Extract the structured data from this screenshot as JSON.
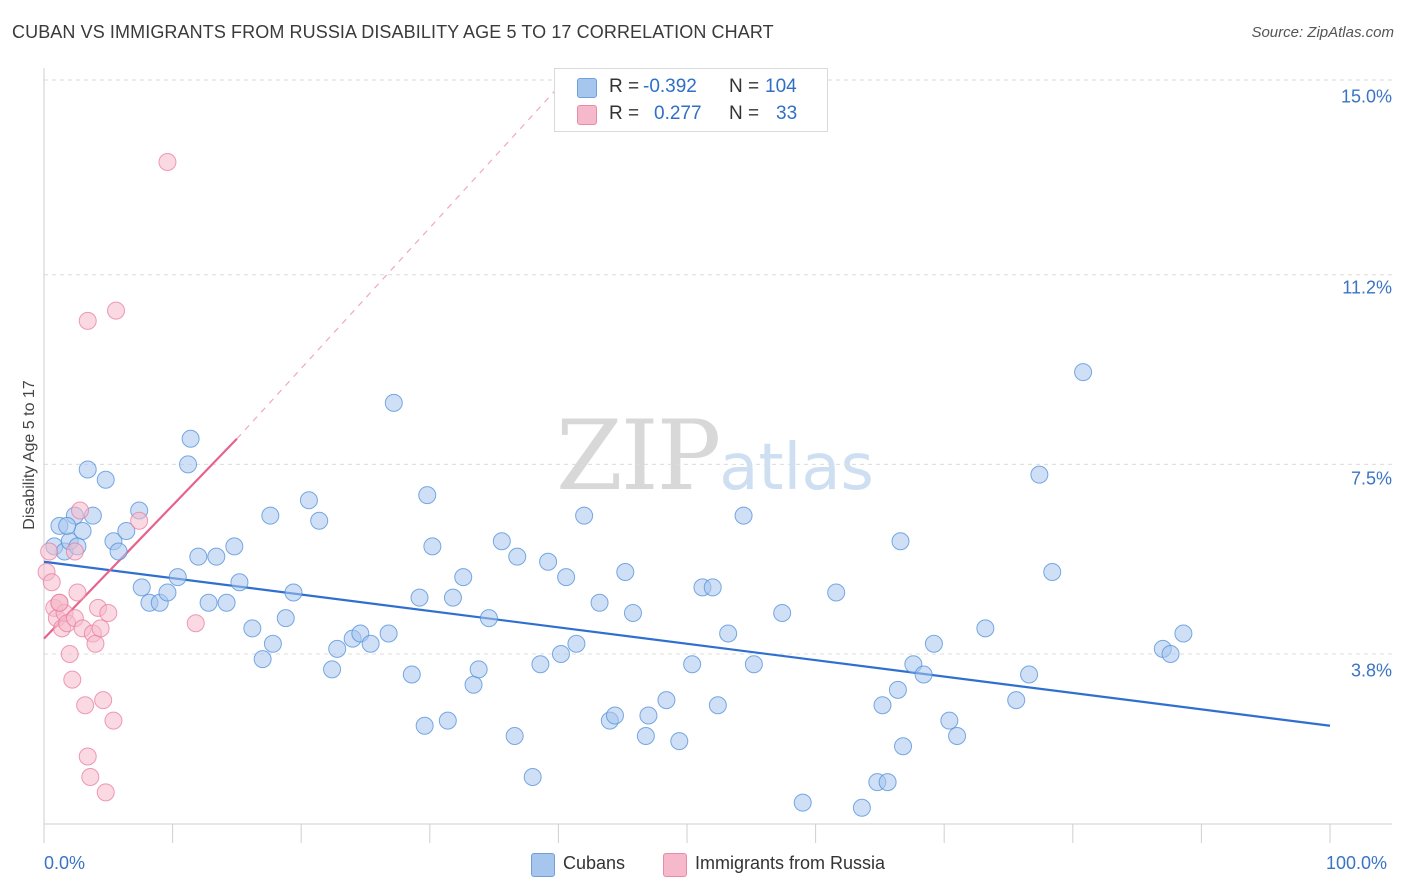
{
  "header": {
    "title": "CUBAN VS IMMIGRANTS FROM RUSSIA DISABILITY AGE 5 TO 17 CORRELATION CHART",
    "source": "Source: ZipAtlas.com"
  },
  "watermark": {
    "zip": "ZIP",
    "atlas": "atlas"
  },
  "legend": {
    "rows": [
      {
        "r_label": "R =",
        "r_value": "-0.392",
        "n_label": "N =",
        "n_value": "104",
        "color": "#a7c6ee"
      },
      {
        "r_label": "R =",
        "r_value": "0.277",
        "n_label": "N =",
        "n_value": "33",
        "color": "#f5b9cb"
      }
    ]
  },
  "bottom_legend": [
    {
      "label": "Cubans",
      "color": "#a7c6ee"
    },
    {
      "label": "Immigrants from Russia",
      "color": "#f5b9cb"
    }
  ],
  "chart_data": {
    "type": "scatter",
    "ylabel": "Disability Age 5 to 17",
    "x_ticks": [
      "0.0%",
      "100.0%"
    ],
    "y_ticks": [
      {
        "value": 3.8,
        "label": "3.8%"
      },
      {
        "value": 7.5,
        "label": "7.5%"
      },
      {
        "value": 11.2,
        "label": "11.2%"
      },
      {
        "value": 15.0,
        "label": "15.0%"
      }
    ],
    "xlim": [
      0,
      100
    ],
    "ylim": [
      0,
      16.3
    ],
    "grid": "horizontal dashed",
    "series": [
      {
        "name": "Cubans",
        "color": "#4f8fd9",
        "fill": "#a7c6ee",
        "trend": {
          "x": [
            0,
            100
          ],
          "y": [
            5.6,
            2.4
          ],
          "color": "#2f6fd0"
        },
        "points": [
          [
            0.8,
            5.9
          ],
          [
            1.2,
            6.3
          ],
          [
            1.6,
            5.8
          ],
          [
            2.0,
            6.0
          ],
          [
            2.4,
            6.5
          ],
          [
            3.0,
            6.2
          ],
          [
            1.8,
            6.3
          ],
          [
            2.6,
            5.9
          ],
          [
            3.4,
            7.4
          ],
          [
            3.8,
            6.5
          ],
          [
            4.8,
            7.2
          ],
          [
            5.4,
            6.0
          ],
          [
            5.8,
            5.8
          ],
          [
            6.4,
            6.2
          ],
          [
            7.6,
            5.1
          ],
          [
            8.2,
            4.8
          ],
          [
            7.4,
            6.6
          ],
          [
            9.0,
            4.8
          ],
          [
            9.6,
            5.0
          ],
          [
            10.4,
            5.3
          ],
          [
            11.2,
            7.5
          ],
          [
            11.4,
            8.0
          ],
          [
            12.0,
            5.7
          ],
          [
            12.8,
            4.8
          ],
          [
            13.4,
            5.7
          ],
          [
            14.2,
            4.8
          ],
          [
            14.8,
            5.9
          ],
          [
            15.2,
            5.2
          ],
          [
            16.2,
            4.3
          ],
          [
            17.0,
            3.7
          ],
          [
            17.6,
            6.5
          ],
          [
            17.8,
            4.0
          ],
          [
            18.8,
            4.5
          ],
          [
            19.4,
            5.0
          ],
          [
            20.6,
            6.8
          ],
          [
            21.4,
            6.4
          ],
          [
            22.4,
            3.5
          ],
          [
            22.8,
            3.9
          ],
          [
            24.0,
            4.1
          ],
          [
            24.6,
            4.2
          ],
          [
            25.4,
            4.0
          ],
          [
            26.8,
            4.2
          ],
          [
            27.2,
            8.7
          ],
          [
            28.6,
            3.4
          ],
          [
            29.2,
            4.9
          ],
          [
            29.6,
            2.4
          ],
          [
            29.8,
            6.9
          ],
          [
            30.2,
            5.9
          ],
          [
            31.4,
            2.5
          ],
          [
            31.8,
            4.9
          ],
          [
            32.6,
            5.3
          ],
          [
            33.4,
            3.2
          ],
          [
            33.8,
            3.5
          ],
          [
            34.6,
            4.5
          ],
          [
            35.6,
            6.0
          ],
          [
            36.6,
            2.2
          ],
          [
            36.8,
            5.7
          ],
          [
            38.0,
            1.4
          ],
          [
            38.6,
            3.6
          ],
          [
            39.2,
            5.6
          ],
          [
            40.2,
            3.8
          ],
          [
            40.6,
            5.3
          ],
          [
            41.4,
            4.0
          ],
          [
            42.0,
            6.5
          ],
          [
            43.2,
            4.8
          ],
          [
            44.0,
            2.5
          ],
          [
            44.4,
            2.6
          ],
          [
            45.2,
            5.4
          ],
          [
            45.8,
            4.6
          ],
          [
            46.8,
            2.2
          ],
          [
            47.0,
            2.6
          ],
          [
            48.4,
            2.9
          ],
          [
            49.4,
            2.1
          ],
          [
            50.4,
            3.6
          ],
          [
            51.2,
            5.1
          ],
          [
            52.0,
            5.1
          ],
          [
            52.4,
            2.8
          ],
          [
            53.2,
            4.2
          ],
          [
            54.4,
            6.5
          ],
          [
            55.2,
            3.6
          ],
          [
            57.4,
            4.6
          ],
          [
            59.0,
            0.9
          ],
          [
            61.6,
            5.0
          ],
          [
            63.6,
            0.8
          ],
          [
            64.8,
            1.3
          ],
          [
            65.2,
            2.8
          ],
          [
            65.6,
            1.3
          ],
          [
            66.4,
            3.1
          ],
          [
            66.6,
            6.0
          ],
          [
            66.8,
            2.0
          ],
          [
            67.6,
            3.6
          ],
          [
            68.4,
            3.4
          ],
          [
            69.2,
            4.0
          ],
          [
            70.4,
            2.5
          ],
          [
            71.0,
            2.2
          ],
          [
            73.2,
            4.3
          ],
          [
            75.6,
            2.9
          ],
          [
            76.6,
            3.4
          ],
          [
            77.4,
            7.3
          ],
          [
            78.4,
            5.4
          ],
          [
            80.8,
            9.3
          ],
          [
            87.0,
            3.9
          ],
          [
            87.6,
            3.8
          ],
          [
            88.6,
            4.2
          ]
        ]
      },
      {
        "name": "Immigrants from Russia",
        "color": "#e87ca0",
        "fill": "#f5b9cb",
        "trend": {
          "x": [
            0,
            15
          ],
          "y": [
            4.1,
            8.0
          ],
          "dash_to": [
            40.5,
            15.0
          ],
          "color": "#e8628e"
        },
        "points": [
          [
            0.2,
            5.4
          ],
          [
            0.4,
            5.8
          ],
          [
            0.6,
            5.2
          ],
          [
            0.8,
            4.7
          ],
          [
            1.0,
            4.5
          ],
          [
            1.2,
            4.8
          ],
          [
            1.4,
            4.3
          ],
          [
            1.6,
            4.6
          ],
          [
            1.8,
            4.4
          ],
          [
            2.0,
            3.8
          ],
          [
            2.2,
            3.3
          ],
          [
            2.4,
            4.5
          ],
          [
            2.6,
            5.0
          ],
          [
            2.8,
            6.6
          ],
          [
            3.0,
            4.3
          ],
          [
            3.2,
            2.8
          ],
          [
            3.4,
            1.8
          ],
          [
            3.6,
            1.4
          ],
          [
            3.8,
            4.2
          ],
          [
            4.0,
            4.0
          ],
          [
            4.2,
            4.7
          ],
          [
            4.4,
            4.3
          ],
          [
            4.6,
            2.9
          ],
          [
            4.8,
            1.1
          ],
          [
            5.0,
            4.6
          ],
          [
            5.4,
            2.5
          ],
          [
            3.4,
            10.3
          ],
          [
            5.6,
            10.5
          ],
          [
            7.4,
            6.4
          ],
          [
            9.6,
            13.4
          ],
          [
            11.8,
            4.4
          ],
          [
            2.4,
            5.8
          ],
          [
            1.2,
            4.8
          ]
        ]
      }
    ]
  }
}
